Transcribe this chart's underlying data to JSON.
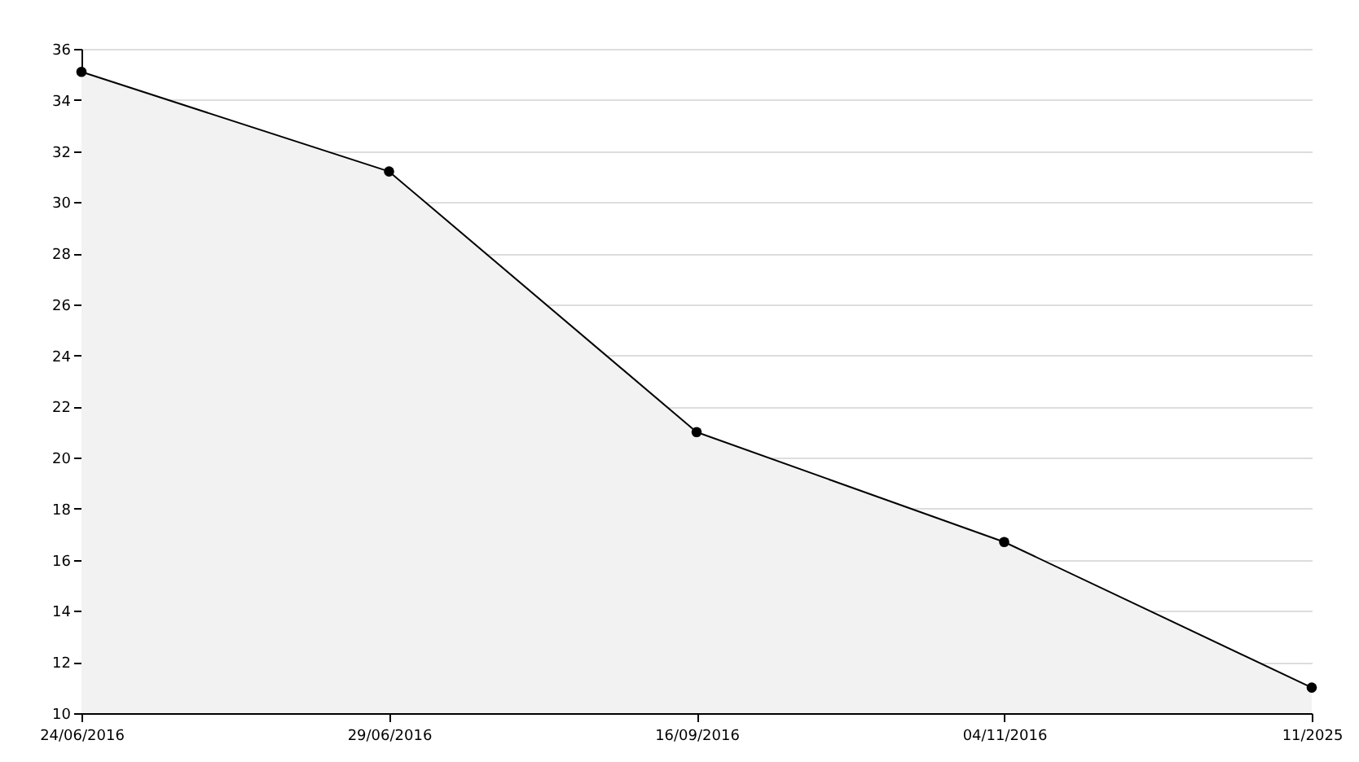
{
  "chart_data": {
    "type": "area",
    "categories": [
      "24/06/2016",
      "29/06/2016",
      "16/09/2016",
      "04/11/2016",
      "11/2025"
    ],
    "series": [
      {
        "color": "#000000",
        "values": [
          35.1,
          31.2,
          21.0,
          16.7,
          11.0
        ]
      }
    ],
    "ylim": [
      10,
      36
    ],
    "yticks": [
      10,
      12,
      14,
      16,
      18,
      20,
      22,
      24,
      26,
      28,
      30,
      32,
      34,
      36
    ],
    "grid": "y",
    "marker": "circle",
    "line_style": "solid"
  }
}
